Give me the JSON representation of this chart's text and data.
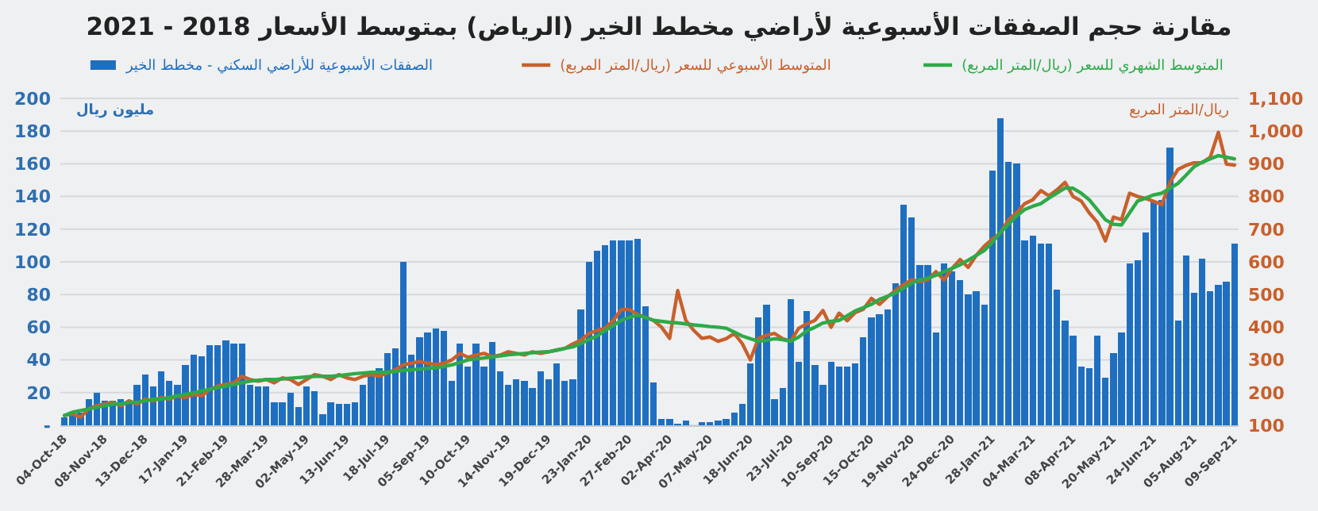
{
  "chart_data": {
    "type": "bar",
    "title": "مقارنة حجم الصفقات الأسبوعية لأراضي مخطط الخير (الرياض) بمتوسط الأسعار 2018 - 2021",
    "ylabel": "مليون ريال",
    "y2label": "ريال/المتر المربع",
    "categories": [
      "04-Oct-18",
      null,
      null,
      null,
      null,
      "08-Nov-18",
      null,
      null,
      null,
      null,
      "13-Dec-18",
      null,
      null,
      null,
      null,
      "17-Jan-19",
      null,
      null,
      null,
      null,
      "21-Feb-19",
      null,
      null,
      null,
      null,
      "28-Mar-19",
      null,
      null,
      null,
      null,
      "02-May-19",
      null,
      null,
      null,
      null,
      "13-Jun-19",
      null,
      null,
      null,
      null,
      "18-Jul-19",
      null,
      null,
      null,
      null,
      "05-Sep-19",
      null,
      null,
      null,
      null,
      "10-Oct-19",
      null,
      null,
      null,
      null,
      "14-Nov-19",
      null,
      null,
      null,
      null,
      "19-Dec-19",
      null,
      null,
      null,
      null,
      "23-Jan-20",
      null,
      null,
      null,
      null,
      "27-Feb-20",
      null,
      null,
      null,
      null,
      "02-Apr-20",
      null,
      null,
      null,
      null,
      "07-May-20",
      null,
      null,
      null,
      null,
      "18-Jun-20",
      null,
      null,
      null,
      null,
      "23-Jul-20",
      null,
      null,
      null,
      null,
      "10-Sep-20",
      null,
      null,
      null,
      null,
      "15-Oct-20",
      null,
      null,
      null,
      null,
      "19-Nov-20",
      null,
      null,
      null,
      null,
      "24-Dec-20",
      null,
      null,
      null,
      null,
      "28-Jan-21",
      null,
      null,
      null,
      null,
      "04-Mar-21",
      null,
      null,
      null,
      null,
      "08-Apr-21",
      null,
      null,
      null,
      null,
      "20-May-21",
      null,
      null,
      null,
      null,
      "24-Jun-21",
      null,
      null,
      null,
      null,
      "05-Aug-21",
      null,
      null,
      null,
      null,
      "09-Sep-21"
    ],
    "series": [
      {
        "name": "الصفقات الأسبوعية للأراضي السكني - مخطط الخير",
        "color": "#1f6fc0",
        "values": [
          5,
          7,
          8,
          16,
          20,
          15,
          15,
          16,
          15,
          25,
          31,
          24,
          33,
          27,
          25,
          37,
          43,
          42,
          49,
          49,
          52,
          50,
          50,
          25,
          24,
          24,
          14,
          14,
          20,
          11,
          24,
          21,
          7,
          14,
          13,
          13,
          14,
          25,
          31,
          35,
          44,
          47,
          100,
          43,
          54,
          57,
          59,
          58,
          27,
          50,
          36,
          50,
          36,
          51,
          33,
          25,
          28,
          27,
          23,
          33,
          28,
          38,
          27,
          28,
          71,
          100,
          107,
          110,
          113,
          113,
          113,
          114,
          73,
          26,
          4,
          4,
          1,
          3,
          0,
          2,
          2,
          3,
          4,
          8,
          13,
          38,
          66,
          74,
          16,
          23,
          77,
          39,
          70,
          37,
          25,
          39,
          36,
          36,
          38,
          54,
          66,
          68,
          71,
          87,
          135,
          127,
          98,
          98,
          57,
          99,
          94,
          89,
          80,
          82,
          74,
          156,
          188,
          161,
          160,
          113,
          116,
          111,
          111,
          83,
          64,
          55,
          36,
          35,
          55,
          29,
          44,
          57,
          99,
          101,
          118,
          137,
          138,
          170,
          64,
          104,
          81,
          102,
          82,
          86,
          88,
          111
        ]
      },
      {
        "type": "line",
        "axis": "y2",
        "name": "المتوسط الأسبوعي للسعر (ريال/المتر المربع)",
        "color": "#c8602c",
        "values": [
          130,
          135,
          125,
          150,
          160,
          165,
          170,
          160,
          175,
          165,
          180,
          175,
          185,
          180,
          190,
          185,
          195,
          190,
          210,
          220,
          225,
          230,
          250,
          240,
          235,
          240,
          230,
          245,
          240,
          225,
          240,
          255,
          250,
          240,
          255,
          245,
          240,
          250,
          255,
          250,
          260,
          270,
          285,
          290,
          295,
          290,
          285,
          290,
          300,
          320,
          308,
          315,
          320,
          310,
          315,
          325,
          320,
          315,
          325,
          320,
          325,
          330,
          335,
          349,
          360,
          381,
          390,
          397,
          420,
          454,
          454,
          440,
          430,
          421,
          400,
          366,
          512,
          421,
          390,
          366,
          370,
          357,
          365,
          381,
          350,
          300,
          366,
          375,
          381,
          365,
          357,
          397,
          410,
          421,
          451,
          400,
          443,
          420,
          445,
          455,
          488,
          470,
          493,
          513,
          530,
          545,
          540,
          545,
          570,
          545,
          580,
          607,
          583,
          620,
          648,
          670,
          688,
          729,
          750,
          778,
          790,
          818,
          802,
          820,
          843,
          800,
          786,
          750,
          721,
          664,
          737,
          729,
          810,
          800,
          794,
          785,
          775,
          843,
          883,
          895,
          903,
          903,
          920,
          996,
          899,
          896
        ]
      },
      {
        "type": "line",
        "axis": "y2",
        "name": "المتوسط الشهري للسعر (ريال/المتر المربع)",
        "color": "#2eaa48",
        "values": [
          130,
          140,
          145,
          150,
          155,
          160,
          165,
          165,
          170,
          170,
          175,
          180,
          180,
          185,
          190,
          195,
          200,
          205,
          210,
          215,
          220,
          225,
          230,
          235,
          238,
          240,
          240,
          242,
          244,
          246,
          248,
          250,
          250,
          250,
          252,
          255,
          258,
          260,
          262,
          262,
          262,
          265,
          268,
          270,
          272,
          274,
          276,
          280,
          285,
          292,
          300,
          303,
          306,
          309,
          312,
          316,
          318,
          320,
          322,
          324,
          325,
          330,
          335,
          340,
          350,
          362,
          373,
          390,
          405,
          421,
          430,
          437,
          430,
          421,
          418,
          415,
          413,
          410,
          407,
          405,
          402,
          400,
          397,
          385,
          373,
          365,
          357,
          360,
          365,
          362,
          357,
          370,
          389,
          400,
          413,
          418,
          421,
          435,
          450,
          460,
          470,
          485,
          495,
          505,
          520,
          535,
          545,
          550,
          559,
          570,
          580,
          591,
          605,
          620,
          635,
          660,
          690,
          715,
          740,
          760,
          770,
          778,
          795,
          810,
          826,
          825,
          810,
          790,
          760,
          729,
          715,
          713,
          750,
          786,
          795,
          805,
          810,
          825,
          840,
          865,
          891,
          905,
          915,
          925,
          920,
          915
        ]
      }
    ],
    "ylim": [
      0,
      200
    ],
    "yticks": [
      {
        "value": 0,
        "label": "-"
      },
      20,
      40,
      60,
      80,
      100,
      120,
      140,
      160,
      180,
      200
    ],
    "y2lim": [
      100,
      1100
    ],
    "y2ticks": [
      100,
      200,
      300,
      400,
      500,
      600,
      700,
      800,
      900,
      {
        "value": 1000,
        "label": "1,000"
      },
      {
        "value": 1100,
        "label": "1,100"
      }
    ],
    "grid": "y",
    "legend": "top"
  }
}
